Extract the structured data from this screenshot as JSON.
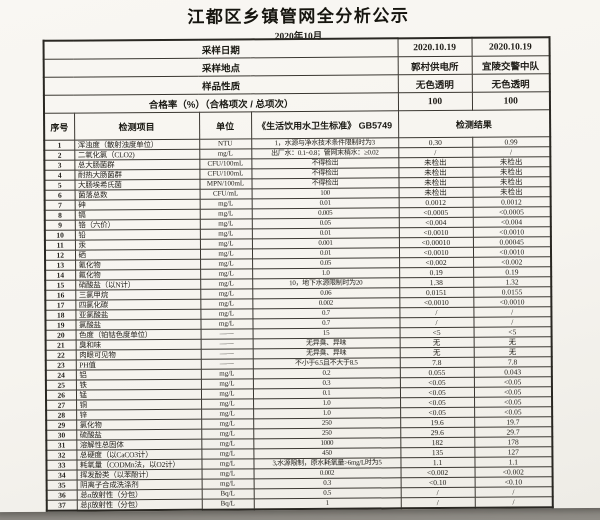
{
  "page": {
    "title": "江都区乡镇管网全分析公示",
    "subtitle": "2020年10月"
  },
  "meta": {
    "rows": [
      {
        "label": "采样日期",
        "values": [
          "2020.10.19",
          "2020.10.19"
        ]
      },
      {
        "label": "采样地点",
        "values": [
          "郭村供电所",
          "宜陵交警中队"
        ]
      },
      {
        "label": "样品性质",
        "values": [
          "无色透明",
          "无色透明"
        ]
      },
      {
        "label": "合格率（%）（合格项次 / 总项次）",
        "values": [
          "100",
          "100"
        ]
      }
    ]
  },
  "columns": {
    "seq": "序号",
    "item": "检测项目",
    "unit": "单位",
    "standard": "《生活饮用水卫生标准》 GB5749",
    "result": "检测结果"
  },
  "rows": [
    {
      "no": "1",
      "item": "浑浊度（散射浊度单位）",
      "unit": "NTU",
      "standard": "1，水源与净水技术条件限制时为3",
      "r1": "0.30",
      "r2": "0.99"
    },
    {
      "no": "2",
      "item": "二氧化氯（CLO2)",
      "unit": "mg/L",
      "standard": "出厂水：0.1~0.8；管网末梢水：≥0.02",
      "r1": "/",
      "r2": "/"
    },
    {
      "no": "3",
      "item": "总大肠菌群",
      "unit": "CFU/100mL",
      "standard": "不得检出",
      "r1": "未检出",
      "r2": "未检出"
    },
    {
      "no": "4",
      "item": "耐热大肠菌群",
      "unit": "CFU/100mL",
      "standard": "不得检出",
      "r1": "未检出",
      "r2": "未检出"
    },
    {
      "no": "5",
      "item": "大肠埃希氏菌",
      "unit": "MPN/100mL",
      "standard": "不得检出",
      "r1": "未检出",
      "r2": "未检出"
    },
    {
      "no": "6",
      "item": "菌落总数",
      "unit": "CFU/mL",
      "standard": "100",
      "r1": "未检出",
      "r2": "未检出"
    },
    {
      "no": "7",
      "item": "砷",
      "unit": "mg/L",
      "standard": "0.01",
      "r1": "0.0012",
      "r2": "0.0012"
    },
    {
      "no": "8",
      "item": "镉",
      "unit": "mg/L",
      "standard": "0.005",
      "r1": "<0.0005",
      "r2": "<0.0005"
    },
    {
      "no": "9",
      "item": "铬（六价）",
      "unit": "mg/L",
      "standard": "0.05",
      "r1": "<0.004",
      "r2": "<0.004"
    },
    {
      "no": "10",
      "item": "铅",
      "unit": "mg/L",
      "standard": "0.01",
      "r1": "<0.0010",
      "r2": "<0.0010"
    },
    {
      "no": "11",
      "item": "汞",
      "unit": "mg/L",
      "standard": "0.001",
      "r1": "<0.00010",
      "r2": "0.00045"
    },
    {
      "no": "12",
      "item": "硒",
      "unit": "mg/L",
      "standard": "0.01",
      "r1": "<0.0010",
      "r2": "<0.0010"
    },
    {
      "no": "13",
      "item": "氰化物",
      "unit": "mg/L",
      "standard": "0.05",
      "r1": "<0.002",
      "r2": "<0.002"
    },
    {
      "no": "14",
      "item": "氟化物",
      "unit": "mg/L",
      "standard": "1.0",
      "r1": "0.19",
      "r2": "0.19"
    },
    {
      "no": "15",
      "item": "硝酸盐（以N计）",
      "unit": "mg/L",
      "standard": "10，地下水源限制时为20",
      "r1": "1.38",
      "r2": "1.32"
    },
    {
      "no": "16",
      "item": "三氯甲烷",
      "unit": "mg/L",
      "standard": "0.06",
      "r1": "0.0151",
      "r2": "0.0155"
    },
    {
      "no": "17",
      "item": "四氯化碳",
      "unit": "mg/L",
      "standard": "0.002",
      "r1": "<0.0010",
      "r2": "<0.0010"
    },
    {
      "no": "18",
      "item": "亚氯酸盐",
      "unit": "mg/L",
      "standard": "0.7",
      "r1": "/",
      "r2": "/"
    },
    {
      "no": "19",
      "item": "氯酸盐",
      "unit": "mg/L",
      "standard": "0.7",
      "r1": "/",
      "r2": "/"
    },
    {
      "no": "20",
      "item": "色度（铂钴色度单位）",
      "unit": "——",
      "standard": "15",
      "r1": "<5",
      "r2": "<5"
    },
    {
      "no": "21",
      "item": "臭和味",
      "unit": "——",
      "standard": "无异臭、异味",
      "r1": "无",
      "r2": "无"
    },
    {
      "no": "22",
      "item": "肉眼可见物",
      "unit": "——",
      "standard": "无异臭、异味",
      "r1": "无",
      "r2": "无"
    },
    {
      "no": "23",
      "item": "PH值",
      "unit": "——",
      "standard": "不小于6.5且不大于8.5",
      "r1": "7.8",
      "r2": "7.8"
    },
    {
      "no": "24",
      "item": "铝",
      "unit": "mg/L",
      "standard": "0.2",
      "r1": "0.055",
      "r2": "0.043"
    },
    {
      "no": "25",
      "item": "铁",
      "unit": "mg/L",
      "standard": "0.3",
      "r1": "<0.05",
      "r2": "<0.05"
    },
    {
      "no": "26",
      "item": "锰",
      "unit": "mg/L",
      "standard": "0.1",
      "r1": "<0.05",
      "r2": "<0.05"
    },
    {
      "no": "27",
      "item": "铜",
      "unit": "mg/L",
      "standard": "1.0",
      "r1": "<0.05",
      "r2": "<0.05"
    },
    {
      "no": "28",
      "item": "锌",
      "unit": "mg/L",
      "standard": "1.0",
      "r1": "<0.05",
      "r2": "<0.05"
    },
    {
      "no": "29",
      "item": "氯化物",
      "unit": "mg/L",
      "standard": "250",
      "r1": "19.6",
      "r2": "19.7"
    },
    {
      "no": "30",
      "item": "硫酸盐",
      "unit": "mg/L",
      "standard": "250",
      "r1": "29.6",
      "r2": "29.7"
    },
    {
      "no": "31",
      "item": "溶解性总固体",
      "unit": "mg/L",
      "standard": "1000",
      "r1": "182",
      "r2": "178"
    },
    {
      "no": "32",
      "item": "总硬度（以CaCO3计）",
      "unit": "mg/L",
      "standard": "450",
      "r1": "135",
      "r2": "127"
    },
    {
      "no": "33",
      "item": "耗氧量（CODMn法，以O2计）",
      "unit": "mg/L",
      "standard": "3,水源限制，原水耗氧量>6mg/L时为5",
      "r1": "1.1",
      "r2": "1.1"
    },
    {
      "no": "34",
      "item": "挥发酚类（以苯酚计）",
      "unit": "mg/L",
      "standard": "0.002",
      "r1": "<0.002",
      "r2": "<0.002"
    },
    {
      "no": "35",
      "item": "阴离子合成洗涤剂",
      "unit": "mg/L",
      "standard": "0.3",
      "r1": "<0.10",
      "r2": "<0.10"
    },
    {
      "no": "36",
      "item": "总α放射性（分包）",
      "unit": "Bq/L",
      "standard": "0.5",
      "r1": "/",
      "r2": "/"
    },
    {
      "no": "37",
      "item": "总β放射性（分包）",
      "unit": "Bq/L",
      "standard": "1",
      "r1": "/",
      "r2": "/"
    }
  ],
  "colors": {
    "paper": "#f7f5f1",
    "ink": "#201e19",
    "border": "#3a3731",
    "scan_background": "#a29f99"
  }
}
